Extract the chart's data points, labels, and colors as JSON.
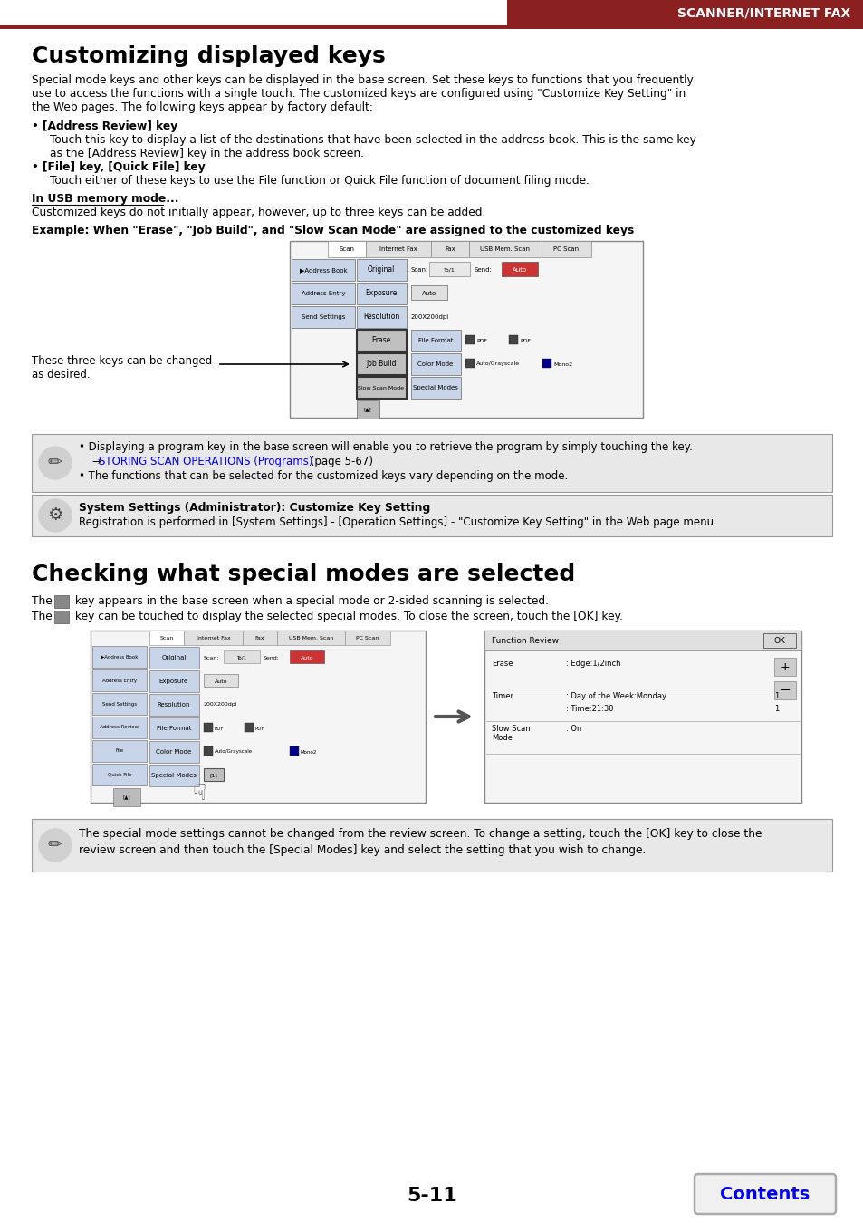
{
  "header_text": "SCANNER/INTERNET FAX",
  "header_bar_color": "#8B2020",
  "title1": "Customizing displayed keys",
  "body1_lines": [
    "Special mode keys and other keys can be displayed in the base screen. Set these keys to functions that you frequently",
    "use to access the functions with a single touch. The customized keys are configured using \"Customize Key Setting\" in",
    "the Web pages. The following keys appear by factory default:"
  ],
  "bullet1_title": "• [Address Review] key",
  "bullet1_body": [
    "Touch this key to display a list of the destinations that have been selected in the address book. This is the same key",
    "as the [Address Review] key in the address book screen."
  ],
  "bullet2_title": "• [File] key, [Quick File] key",
  "bullet2_body": "Touch either of these keys to use the File function or Quick File function of document filing mode.",
  "usb_title": "In USB memory mode...",
  "usb_body": "Customized keys do not initially appear, however, up to three keys can be added.",
  "example_title": "Example: When \"Erase\", \"Job Build\", and \"Slow Scan Mode\" are assigned to the customized keys",
  "three_keys_label": "These three keys can be changed\nas desired.",
  "note1_bullet1": "• Displaying a program key in the base screen will enable you to retrieve the program by simply touching the key.",
  "note1_link_prefix": "    → ",
  "note1_link_text": "STORING SCAN OPERATIONS (Programs)",
  "note1_link_suffix": " (page 5-67)",
  "note1_bullet2": "• The functions that can be selected for the customized keys vary depending on the mode.",
  "note2_title": "System Settings (Administrator): Customize Key Setting",
  "note2_body": "Registration is performed in [System Settings] - [Operation Settings] - \"Customize Key Setting\" in the Web page menu.",
  "title2": "Checking what special modes are selected",
  "body2_line1_pre": "The ",
  "body2_line1_post": " key appears in the base screen when a special mode or 2-sided scanning is selected.",
  "body2_line2_pre": "The ",
  "body2_line2_post": " key can be touched to display the selected special modes. To close the screen, touch the [OK] key.",
  "note3_line1": "The special mode settings cannot be changed from the review screen. To change a setting, touch the [OK] key to close the",
  "note3_line2": "review screen and then touch the [Special Modes] key and select the setting that you wish to change.",
  "page_number": "5-11",
  "contents_text": "Contents",
  "bg_color": "#ffffff",
  "text_color": "#000000",
  "link_color": "#0000ee",
  "note_bg": "#e8e8e8",
  "note_border": "#999999",
  "header_bar": "#8B2020",
  "btn_blue": "#c8d4e8",
  "btn_gray": "#d0d0d0",
  "btn_red": "#cc3333",
  "btn_dark": "#888888"
}
